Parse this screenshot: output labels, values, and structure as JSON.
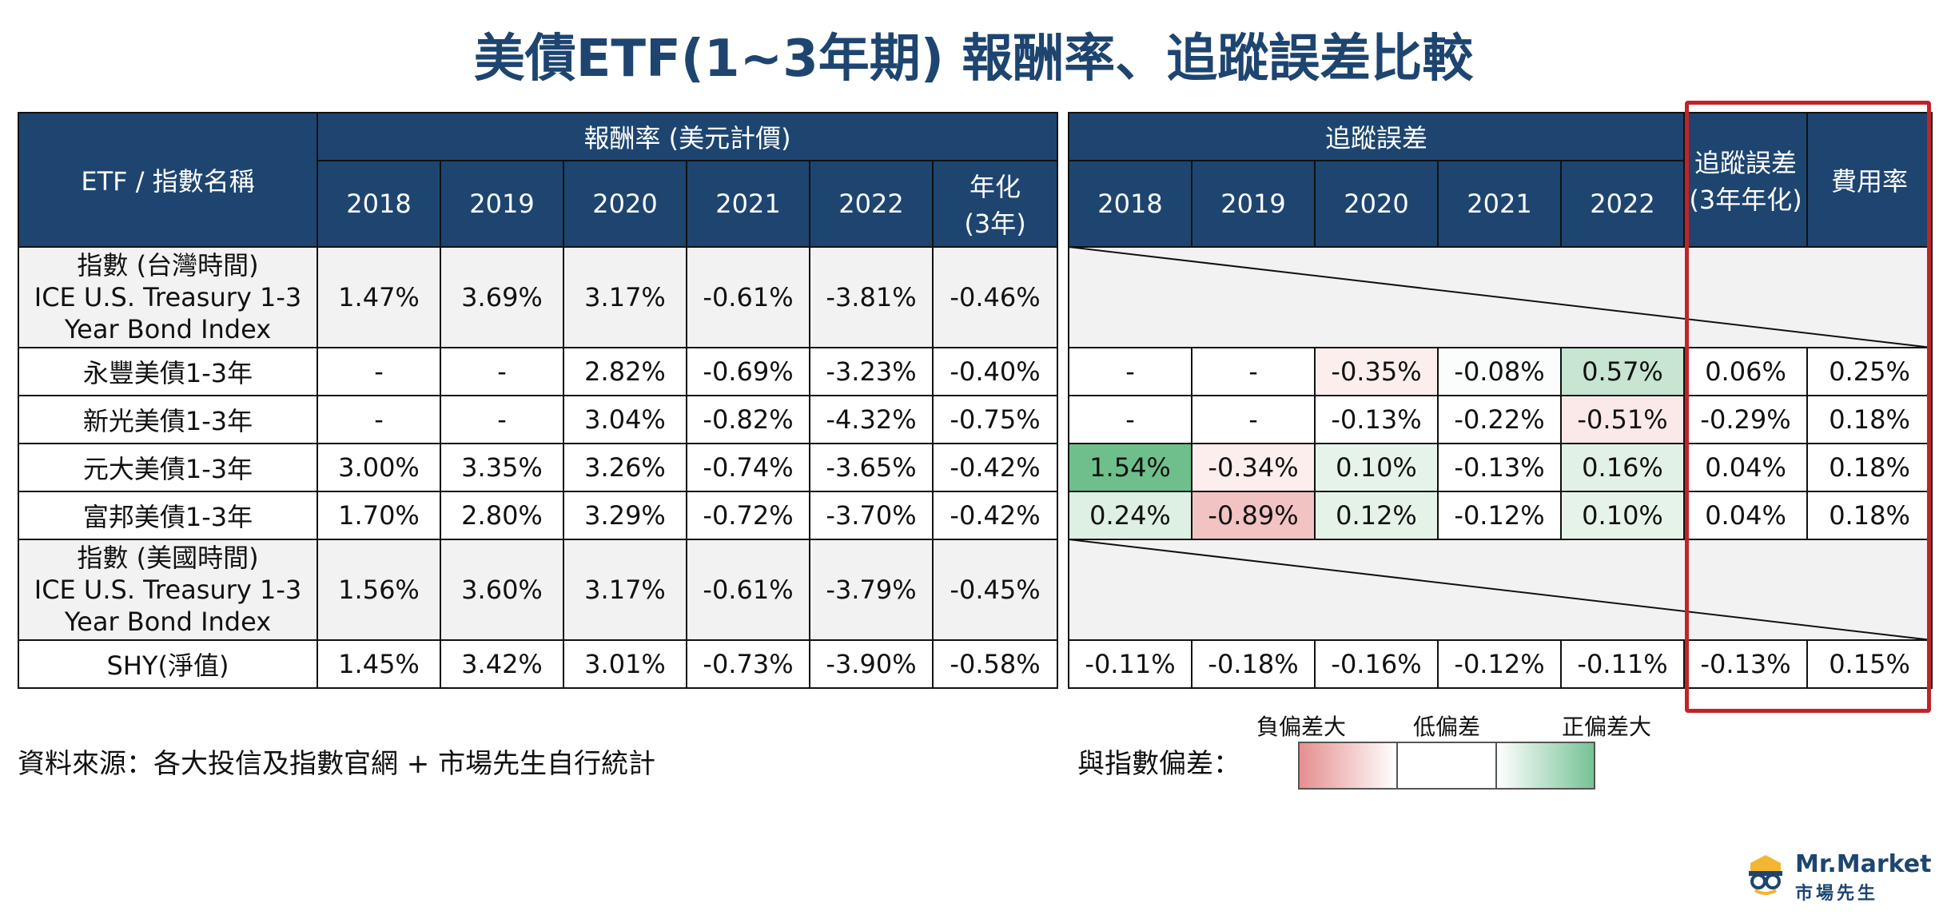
{
  "title": "美債ETF(1~3年期) 報酬率、追蹤誤差比較",
  "table": {
    "name_header": "ETF / 指數名稱",
    "return_group_header": "報酬率 (美元計價)",
    "te_group_header": "追蹤誤差",
    "years": [
      "2018",
      "2019",
      "2020",
      "2021",
      "2022"
    ],
    "annualized_header": "年化\n(3年)",
    "te_annualized_header": "追蹤誤差\n(3年年化)",
    "expense_header": "費用率",
    "rows": [
      {
        "name": "指數 (台灣時間)\nICE U.S. Treasury 1-3\nYear Bond Index",
        "returns": [
          "1.47%",
          "3.69%",
          "3.17%",
          "-0.61%",
          "-3.81%"
        ],
        "annualized": "-0.46%",
        "is_index": true
      },
      {
        "name": "永豐美債1-3年",
        "returns": [
          "-",
          "-",
          "2.82%",
          "-0.69%",
          "-3.23%"
        ],
        "annualized": "-0.40%",
        "te": [
          "-",
          "-",
          "-0.35%",
          "-0.08%",
          "0.57%"
        ],
        "te_colors": [
          "#ffffff",
          "#ffffff",
          "#fdeeee",
          "#fbfcfc",
          "#c7e5d0"
        ],
        "te_annualized": "0.06%",
        "expense": "0.25%"
      },
      {
        "name": "新光美債1-3年",
        "returns": [
          "-",
          "-",
          "3.04%",
          "-0.82%",
          "-4.32%"
        ],
        "annualized": "-0.75%",
        "te": [
          "-",
          "-",
          "-0.13%",
          "-0.22%",
          "-0.51%"
        ],
        "te_colors": [
          "#ffffff",
          "#ffffff",
          "#ffffff",
          "#ffffff",
          "#fbe8e8"
        ],
        "te_annualized": "-0.29%",
        "expense": "0.18%"
      },
      {
        "name": "元大美債1-3年",
        "returns": [
          "3.00%",
          "3.35%",
          "3.26%",
          "-0.74%",
          "-3.65%"
        ],
        "annualized": "-0.42%",
        "te": [
          "1.54%",
          "-0.34%",
          "0.10%",
          "-0.13%",
          "0.16%"
        ],
        "te_colors": [
          "#6fbf8d",
          "#fdeeee",
          "#e6f3ea",
          "#ffffff",
          "#e2f1e7"
        ],
        "te_annualized": "0.04%",
        "expense": "0.18%"
      },
      {
        "name": "富邦美債1-3年",
        "returns": [
          "1.70%",
          "2.80%",
          "3.29%",
          "-0.72%",
          "-3.70%"
        ],
        "annualized": "-0.42%",
        "te": [
          "0.24%",
          "-0.89%",
          "0.12%",
          "-0.12%",
          "0.10%"
        ],
        "te_colors": [
          "#deefe3",
          "#f2c3c3",
          "#e4f2e8",
          "#ffffff",
          "#e6f3ea"
        ],
        "te_annualized": "0.04%",
        "expense": "0.18%"
      },
      {
        "name": "指數 (美國時間)\nICE U.S. Treasury 1-3\nYear Bond Index",
        "returns": [
          "1.56%",
          "3.60%",
          "3.17%",
          "-0.61%",
          "-3.79%"
        ],
        "annualized": "-0.45%",
        "is_index": true
      },
      {
        "name": "SHY(淨值)",
        "returns": [
          "1.45%",
          "3.42%",
          "3.01%",
          "-0.73%",
          "-3.90%"
        ],
        "annualized": "-0.58%",
        "te": [
          "-0.11%",
          "-0.18%",
          "-0.16%",
          "-0.12%",
          "-0.11%"
        ],
        "te_colors": [
          "#ffffff",
          "#ffffff",
          "#ffffff",
          "#ffffff",
          "#ffffff"
        ],
        "te_annualized": "-0.13%",
        "expense": "0.15%"
      }
    ]
  },
  "source": "資料來源：各大投信及指數官網 + 市場先生自行統計",
  "legend": {
    "label": "與指數偏差：",
    "negative": "負偏差大",
    "low": "低偏差",
    "positive": "正偏差大"
  },
  "logo": {
    "en": "Mr.Market",
    "zh": "市場先生"
  },
  "colors": {
    "header_bg": "#1d4570",
    "highlight_border": "#c0232a",
    "index_row_bg": "#f2f2f2"
  }
}
